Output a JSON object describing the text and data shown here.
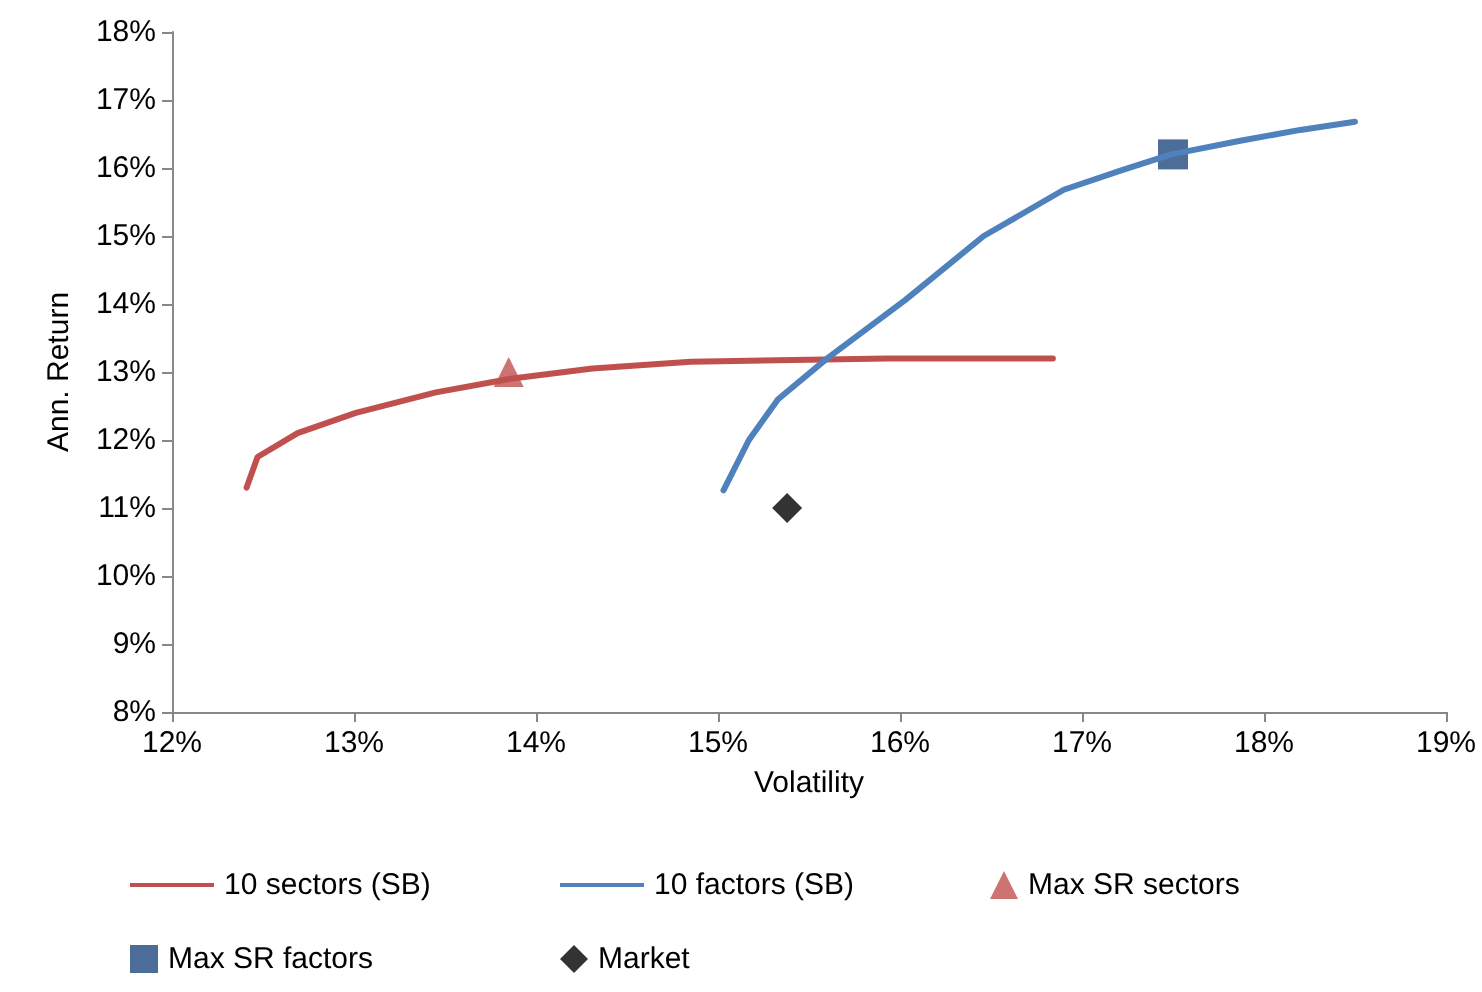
{
  "chart_data": {
    "type": "line",
    "xlabel": "Volatility",
    "ylabel": "Ann. Return",
    "xlim": [
      12,
      19
    ],
    "xticks": [
      {
        "value": 12,
        "label": "12%"
      },
      {
        "value": 13,
        "label": "13%"
      },
      {
        "value": 14,
        "label": "14%"
      },
      {
        "value": 15,
        "label": "15%"
      },
      {
        "value": 16,
        "label": "16%"
      },
      {
        "value": 17,
        "label": "17%"
      },
      {
        "value": 18,
        "label": "18%"
      },
      {
        "value": 19,
        "label": "19%"
      }
    ],
    "ylim": [
      8,
      18
    ],
    "yticks": [
      {
        "value": 8,
        "label": "8%"
      },
      {
        "value": 9,
        "label": "9%"
      },
      {
        "value": 10,
        "label": "10%"
      },
      {
        "value": 11,
        "label": "11%"
      },
      {
        "value": 12,
        "label": "12%"
      },
      {
        "value": 13,
        "label": "13%"
      },
      {
        "value": 14,
        "label": "14%"
      },
      {
        "value": 15,
        "label": "15%"
      },
      {
        "value": 16,
        "label": "16%"
      },
      {
        "value": 17,
        "label": "17%"
      },
      {
        "value": 18,
        "label": "18%"
      }
    ],
    "grid": false,
    "legend": "bottom",
    "marker": "none",
    "series": [
      {
        "name": "10 sectors (SB)",
        "color": "#c0504d",
        "x": [
          12.41,
          12.47,
          12.69,
          13.01,
          13.45,
          13.86,
          14.31,
          14.85,
          15.93,
          16.84
        ],
        "values": [
          11.3,
          11.75,
          12.1,
          12.4,
          12.7,
          12.9,
          13.05,
          13.15,
          13.2,
          13.2
        ]
      },
      {
        "name": "10 factors (SB)",
        "color": "#4f81bd",
        "x": [
          15.03,
          15.17,
          15.33,
          15.6,
          16.03,
          16.46,
          16.9,
          17.22,
          17.49,
          17.87,
          18.2,
          18.5
        ],
        "values": [
          11.26,
          12.0,
          12.6,
          13.2,
          14.06,
          15.0,
          15.68,
          15.97,
          16.2,
          16.4,
          16.56,
          16.68
        ]
      },
      {
        "name": "Max SR sectors",
        "type": "scatter",
        "marker": "triangle",
        "color": "#c0504d",
        "x": [
          13.85
        ],
        "values": [
          13.0
        ]
      },
      {
        "name": "Max SR factors",
        "type": "scatter",
        "marker": "square",
        "color": "#1f497d",
        "x": [
          17.5
        ],
        "values": [
          16.2
        ]
      },
      {
        "name": "Market",
        "type": "scatter",
        "marker": "diamond",
        "color": "#000000",
        "x": [
          15.38
        ],
        "values": [
          11.0
        ]
      }
    ]
  }
}
